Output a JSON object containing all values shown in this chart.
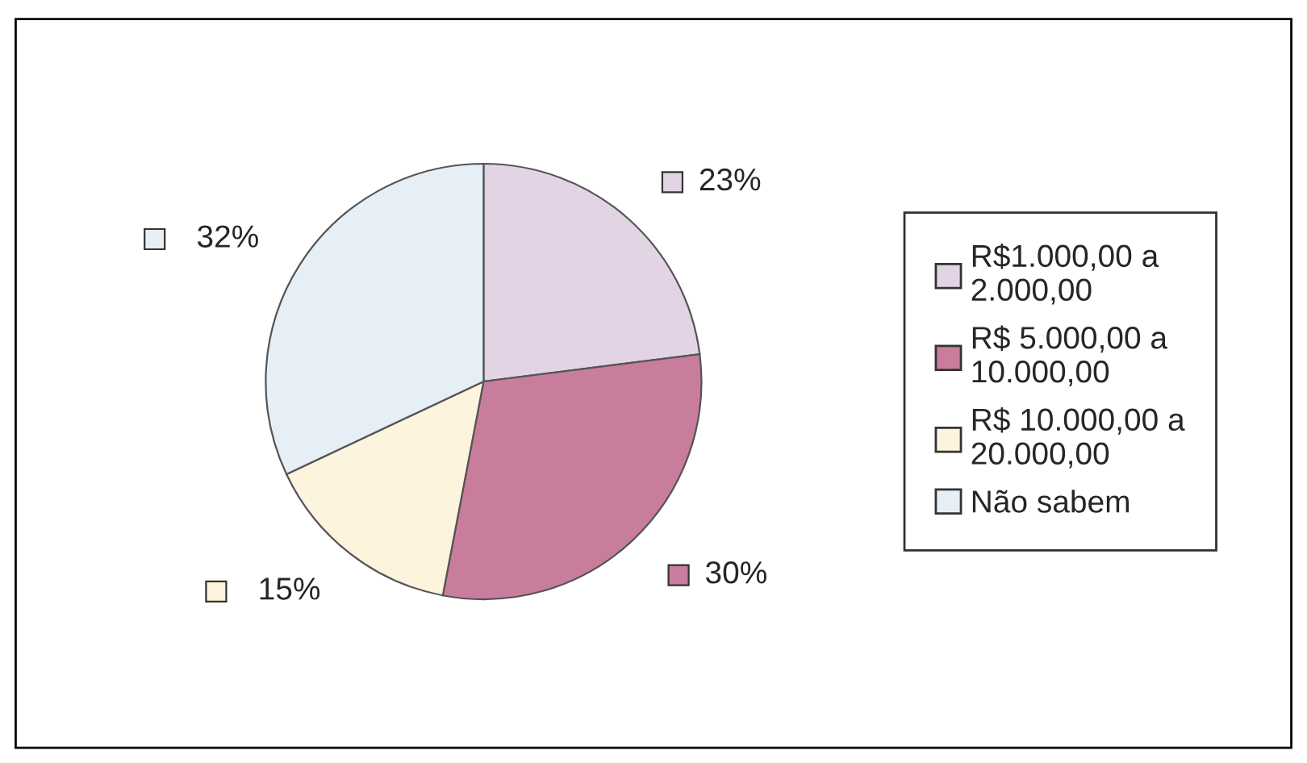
{
  "chart_data": {
    "type": "pie",
    "categories": [
      "R$1.000,00 a 2.000,00",
      "R$ 5.000,00 a 10.000,00",
      "R$ 10.000,00 a 20.000,00",
      "Não sabem"
    ],
    "values": [
      23,
      30,
      15,
      32
    ],
    "value_labels": [
      "23%",
      "30%",
      "15%",
      "32%"
    ],
    "colors": [
      "#e2d4e4",
      "#c97d9c",
      "#fcf4dc",
      "#e6eef6"
    ],
    "legend": "right"
  }
}
